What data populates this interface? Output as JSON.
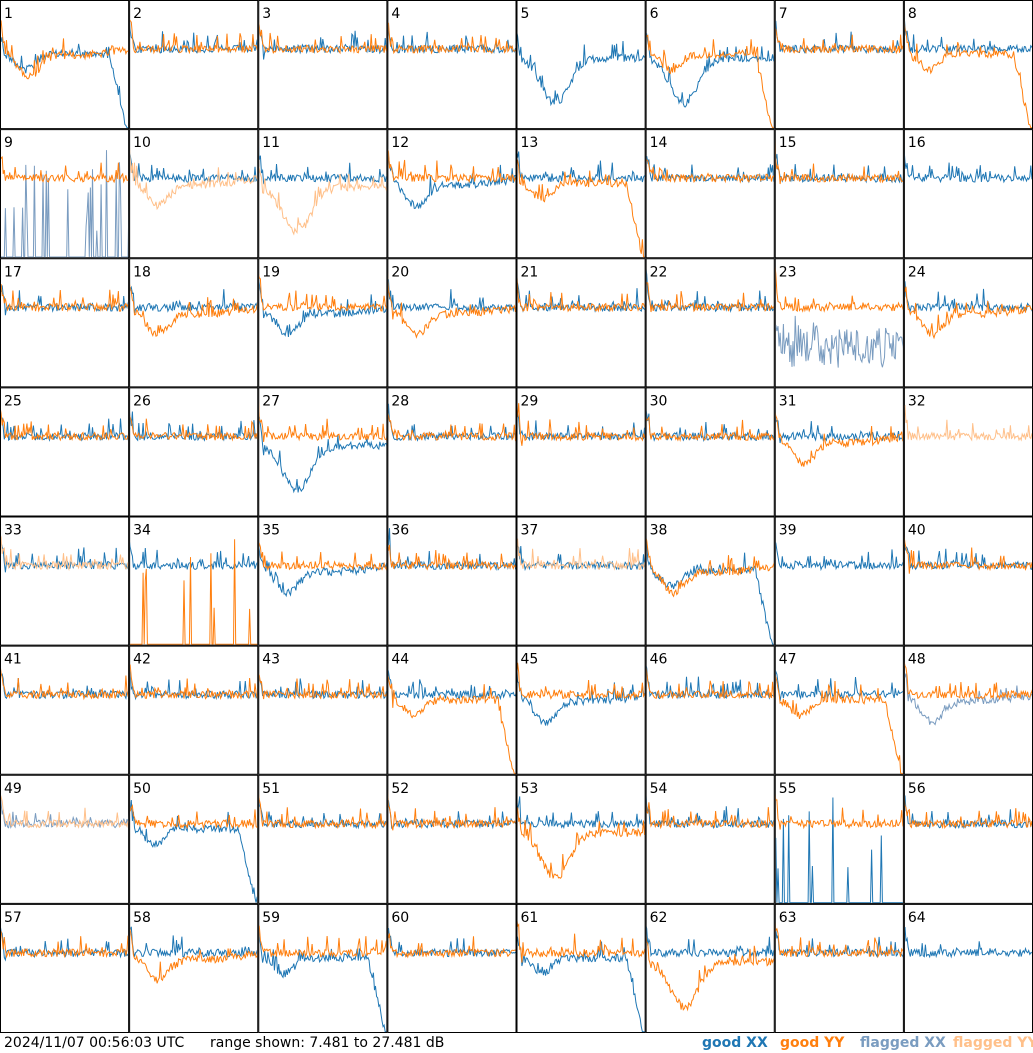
{
  "chart_data": {
    "type": "line",
    "panel_count": 64,
    "panels": [
      {
        "id": "1"
      },
      {
        "id": "2"
      },
      {
        "id": "3"
      },
      {
        "id": "4"
      },
      {
        "id": "5"
      },
      {
        "id": "6"
      },
      {
        "id": "7"
      },
      {
        "id": "8"
      },
      {
        "id": "9"
      },
      {
        "id": "10"
      },
      {
        "id": "11"
      },
      {
        "id": "12"
      },
      {
        "id": "13"
      },
      {
        "id": "14"
      },
      {
        "id": "15"
      },
      {
        "id": "16"
      },
      {
        "id": "17"
      },
      {
        "id": "18"
      },
      {
        "id": "19"
      },
      {
        "id": "20"
      },
      {
        "id": "21"
      },
      {
        "id": "22"
      },
      {
        "id": "23"
      },
      {
        "id": "24"
      },
      {
        "id": "25"
      },
      {
        "id": "26"
      },
      {
        "id": "27"
      },
      {
        "id": "28"
      },
      {
        "id": "29"
      },
      {
        "id": "30"
      },
      {
        "id": "31"
      },
      {
        "id": "32"
      },
      {
        "id": "33"
      },
      {
        "id": "34"
      },
      {
        "id": "35"
      },
      {
        "id": "36"
      },
      {
        "id": "37"
      },
      {
        "id": "38"
      },
      {
        "id": "39"
      },
      {
        "id": "40"
      },
      {
        "id": "41"
      },
      {
        "id": "42"
      },
      {
        "id": "43"
      },
      {
        "id": "44"
      },
      {
        "id": "45"
      },
      {
        "id": "46"
      },
      {
        "id": "47"
      },
      {
        "id": "48"
      },
      {
        "id": "49"
      },
      {
        "id": "50"
      },
      {
        "id": "51"
      },
      {
        "id": "52"
      },
      {
        "id": "53"
      },
      {
        "id": "54"
      },
      {
        "id": "55"
      },
      {
        "id": "56"
      },
      {
        "id": "57"
      },
      {
        "id": "58"
      },
      {
        "id": "59"
      },
      {
        "id": "60"
      },
      {
        "id": "61"
      },
      {
        "id": "62"
      },
      {
        "id": "63"
      },
      {
        "id": "64"
      }
    ],
    "ylim": [
      7.481,
      27.481
    ],
    "grid": false,
    "legend_placement": "bottom-right",
    "series": [
      {
        "name": "good XX",
        "color": "#1f77b4"
      },
      {
        "name": "good YY",
        "color": "#ff7f0e"
      },
      {
        "name": "flagged XX",
        "color": "#7a9cc0"
      },
      {
        "name": "flagged YY",
        "color": "#ffc08a"
      }
    ]
  },
  "footer": {
    "timestamp": "2024/11/07 00:56:03 UTC",
    "range_text": "range shown: 7.481 to 27.481 dB"
  },
  "legend": [
    {
      "label": "good XX",
      "color": "#1f77b4"
    },
    {
      "label": "good YY",
      "color": "#ff7f0e"
    },
    {
      "label": "flagged XX",
      "color": "#7a9cc0"
    },
    {
      "label": "flagged YY",
      "color": "#ffc08a"
    }
  ]
}
